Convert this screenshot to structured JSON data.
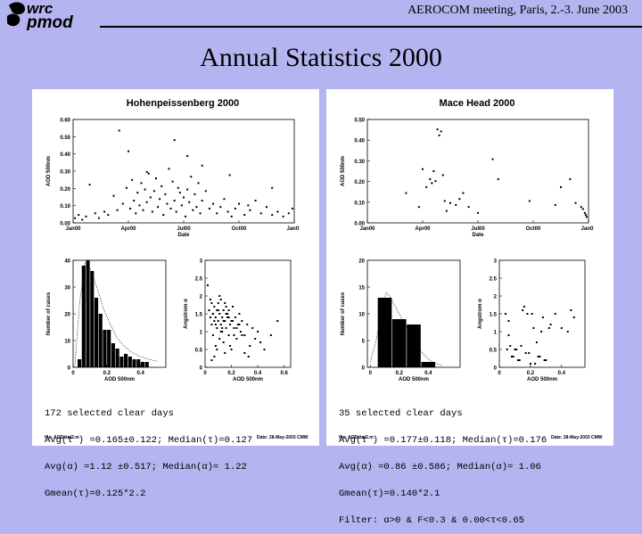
{
  "header": {
    "logo_top": "wrc",
    "logo_bottom": "pmod",
    "meeting": "AEROCOM meeting, Paris, 2.-3. June 2003",
    "title": "Annual Statistics 2000"
  },
  "left": {
    "station": "Hohenpeissenberg 2000",
    "stats": {
      "line1": "172 selected clear days",
      "line2": "Avg(τ ) =0.165±0.122; Median(τ)=0.127",
      "line3": "Avg(α) =1.12 ±0.517; Median(α)= 1.22",
      "line4": "Gmean(τ)=0.125*2.2"
    },
    "file": "file: AODstat2.m",
    "date": "Date: 28-May-2003 CMW"
  },
  "right": {
    "station": "Mace Head 2000",
    "stats": {
      "line1": "35 selected clear days",
      "line2": "Avg(τ ) =0.177±0.118; Median(τ)=0.176",
      "line3": "Avg(α) =0.86 ±0.586; Median(α)= 1.06",
      "line4": "Gmean(τ)=0.140*2.1",
      "line5": "Filter: α>0 & F<0.3 & 0.00<τ<0.65"
    },
    "file": "file: AODstat2.m",
    "date": "Date: 28-May-2003 CMW"
  },
  "chart_data": [
    {
      "id": "hp-ts",
      "type": "scatter",
      "xlabel": "Date",
      "ylabel": "AOD 500nm",
      "xticks": [
        "Jan00",
        "Apr00",
        "Jul00",
        "Oct00",
        "Jan01"
      ],
      "yticks": [
        "0.00",
        "0.10",
        "0.20",
        "0.30",
        "0.40",
        "0.50",
        "0.60"
      ],
      "xlim": [
        0,
        12
      ],
      "ylim": [
        0,
        0.65
      ],
      "x": [
        0.1,
        0.3,
        0.5,
        0.7,
        0.9,
        1.2,
        1.4,
        1.7,
        1.9,
        2.2,
        2.4,
        2.7,
        2.9,
        3.1,
        3.2,
        3.3,
        3.4,
        3.5,
        3.6,
        3.7,
        3.8,
        3.9,
        4.0,
        4.1,
        4.2,
        4.3,
        4.4,
        4.5,
        4.6,
        4.7,
        4.8,
        4.9,
        5.0,
        5.1,
        5.2,
        5.3,
        5.4,
        5.5,
        5.6,
        5.7,
        5.8,
        5.9,
        6.0,
        6.1,
        6.2,
        6.3,
        6.4,
        6.5,
        6.6,
        6.7,
        6.8,
        6.9,
        7.0,
        7.2,
        7.4,
        7.6,
        7.8,
        8.0,
        8.2,
        8.4,
        8.6,
        8.8,
        9.0,
        9.3,
        9.6,
        9.9,
        10.2,
        10.5,
        10.8,
        11.1,
        11.4,
        11.7,
        11.9,
        2.5,
        3.0,
        4.0,
        5.5,
        6.2,
        7.0,
        8.5,
        9.5,
        10.8
      ],
      "y": [
        0.03,
        0.05,
        0.02,
        0.04,
        0.24,
        0.06,
        0.03,
        0.07,
        0.05,
        0.17,
        0.08,
        0.12,
        0.22,
        0.09,
        0.27,
        0.14,
        0.06,
        0.19,
        0.11,
        0.25,
        0.08,
        0.21,
        0.13,
        0.31,
        0.16,
        0.07,
        0.2,
        0.28,
        0.1,
        0.15,
        0.23,
        0.05,
        0.18,
        0.12,
        0.34,
        0.09,
        0.26,
        0.14,
        0.07,
        0.22,
        0.19,
        0.11,
        0.16,
        0.04,
        0.21,
        0.13,
        0.29,
        0.08,
        0.18,
        0.1,
        0.25,
        0.06,
        0.14,
        0.2,
        0.09,
        0.12,
        0.06,
        0.1,
        0.15,
        0.07,
        0.04,
        0.09,
        0.12,
        0.05,
        0.08,
        0.14,
        0.06,
        0.1,
        0.05,
        0.07,
        0.04,
        0.06,
        0.09,
        0.58,
        0.45,
        0.32,
        0.52,
        0.42,
        0.36,
        0.3,
        0.11,
        0.22
      ]
    },
    {
      "id": "mh-ts",
      "type": "scatter",
      "xlabel": "Date",
      "ylabel": "AOD 500nm",
      "xticks": [
        "Jan00",
        "Apr00",
        "Jul00",
        "Oct00",
        "Jan01"
      ],
      "yticks": [
        "0.00",
        "0.10",
        "0.20",
        "0.30",
        "0.40",
        "0.50"
      ],
      "xlim": [
        0,
        12
      ],
      "ylim": [
        0,
        0.52
      ],
      "x": [
        2.1,
        2.8,
        3.0,
        3.2,
        3.4,
        3.5,
        3.6,
        3.7,
        3.8,
        3.9,
        4.0,
        4.1,
        4.2,
        4.3,
        4.5,
        4.8,
        5.0,
        5.2,
        5.5,
        6.0,
        6.8,
        7.1,
        8.8,
        10.2,
        10.5,
        11.0,
        11.3,
        11.6,
        11.7,
        11.8,
        11.85,
        11.9
      ],
      "y": [
        0.15,
        0.08,
        0.27,
        0.18,
        0.22,
        0.2,
        0.26,
        0.21,
        0.47,
        0.44,
        0.46,
        0.24,
        0.11,
        0.06,
        0.1,
        0.09,
        0.12,
        0.15,
        0.08,
        0.05,
        0.32,
        0.22,
        0.11,
        0.09,
        0.18,
        0.22,
        0.1,
        0.08,
        0.07,
        0.05,
        0.04,
        0.03
      ]
    },
    {
      "id": "hp-hist",
      "type": "bar",
      "xlabel": "AOD 500nm",
      "ylabel": "Number of cases",
      "xticks": [
        "0",
        "0.2",
        "0.4"
      ],
      "yticks": [
        "0",
        "10",
        "20",
        "30",
        "40"
      ],
      "xlim": [
        0,
        0.55
      ],
      "ylim": [
        0,
        40
      ],
      "bin_starts": [
        0.025,
        0.05,
        0.075,
        0.1,
        0.125,
        0.15,
        0.175,
        0.2,
        0.225,
        0.25,
        0.275,
        0.3,
        0.325,
        0.35,
        0.375,
        0.4,
        0.425
      ],
      "values": [
        3,
        38,
        40,
        36,
        26,
        20,
        14,
        14,
        9,
        7,
        4,
        5,
        4,
        3,
        3,
        2,
        2
      ],
      "fit": [
        [
          0.01,
          0.5
        ],
        [
          0.04,
          25
        ],
        [
          0.07,
          39
        ],
        [
          0.1,
          37
        ],
        [
          0.14,
          30
        ],
        [
          0.18,
          22
        ],
        [
          0.22,
          16
        ],
        [
          0.26,
          11
        ],
        [
          0.3,
          8
        ],
        [
          0.35,
          5.5
        ],
        [
          0.4,
          4
        ],
        [
          0.45,
          3
        ],
        [
          0.5,
          2.2
        ]
      ]
    },
    {
      "id": "mh-hist",
      "type": "bar",
      "xlabel": "AOD 500nm",
      "ylabel": "Number of cases",
      "xticks": [
        "0",
        "0.2",
        "0.4"
      ],
      "yticks": [
        "0",
        "5",
        "10",
        "15",
        "20"
      ],
      "xlim": [
        -0.02,
        0.62
      ],
      "ylim": [
        0,
        20
      ],
      "bin_width": 0.1,
      "bin_starts": [
        0.05,
        0.15,
        0.25,
        0.35
      ],
      "values": [
        13,
        9,
        8,
        1
      ],
      "fit": [
        [
          0.0,
          1
        ],
        [
          0.04,
          5
        ],
        [
          0.08,
          11
        ],
        [
          0.11,
          14
        ],
        [
          0.14,
          13
        ],
        [
          0.18,
          11
        ],
        [
          0.22,
          9
        ],
        [
          0.26,
          7
        ],
        [
          0.3,
          5
        ],
        [
          0.35,
          3
        ],
        [
          0.4,
          1.5
        ],
        [
          0.45,
          0.7
        ],
        [
          0.5,
          0.3
        ]
      ]
    },
    {
      "id": "hp-sc",
      "type": "scatter",
      "xlabel": "AOD 500nm",
      "ylabel": "Angstrom α",
      "xticks": [
        "0",
        "0.2",
        "0.4",
        "0.6"
      ],
      "yticks": [
        "0",
        "0.5",
        "1",
        "1.5",
        "2",
        "2.5",
        "3"
      ],
      "xlim": [
        0,
        0.65
      ],
      "ylim": [
        0,
        3
      ],
      "x": [
        0.02,
        0.03,
        0.04,
        0.05,
        0.05,
        0.06,
        0.06,
        0.07,
        0.07,
        0.08,
        0.08,
        0.09,
        0.09,
        0.1,
        0.1,
        0.11,
        0.11,
        0.12,
        0.12,
        0.13,
        0.13,
        0.14,
        0.14,
        0.15,
        0.15,
        0.16,
        0.16,
        0.17,
        0.18,
        0.18,
        0.19,
        0.2,
        0.2,
        0.21,
        0.22,
        0.23,
        0.24,
        0.25,
        0.26,
        0.27,
        0.28,
        0.3,
        0.32,
        0.34,
        0.36,
        0.38,
        0.4,
        0.42,
        0.45,
        0.5,
        0.55,
        0.04,
        0.06,
        0.08,
        0.1,
        0.12,
        0.14,
        0.16,
        0.18,
        0.22,
        0.26,
        0.3,
        0.05,
        0.07,
        0.09,
        0.11,
        0.13,
        0.15,
        0.17,
        0.19,
        0.21,
        0.24,
        0.28,
        0.33
      ],
      "y": [
        2.3,
        1.6,
        1.4,
        1.8,
        1.2,
        1.5,
        0.9,
        1.7,
        1.3,
        1.4,
        0.6,
        1.6,
        1.1,
        1.8,
        1.3,
        1.5,
        0.8,
        1.9,
        1.2,
        1.4,
        1.0,
        1.6,
        0.7,
        1.3,
        1.8,
        1.1,
        1.5,
        1.4,
        0.9,
        1.6,
        1.2,
        1.3,
        0.5,
        1.7,
        1.1,
        1.4,
        0.8,
        1.2,
        1.5,
        1.0,
        1.3,
        0.9,
        1.2,
        0.6,
        1.1,
        0.8,
        1.0,
        0.7,
        0.5,
        0.9,
        1.3,
        1.9,
        1.5,
        1.2,
        1.6,
        1.0,
        1.3,
        1.7,
        1.4,
        0.9,
        1.2,
        0.4,
        0.2,
        0.3,
        0.5,
        2.0,
        1.1,
        0.4,
        1.5,
        0.6,
        1.3,
        1.1,
        0.9,
        0.3
      ]
    },
    {
      "id": "mh-sc",
      "type": "scatter",
      "xlabel": "AOD 500nm",
      "ylabel": "Angstrom α",
      "xticks": [
        "0",
        "0.2",
        "0.4"
      ],
      "yticks": [
        "0",
        "0.5",
        "1",
        "1.5",
        "2",
        "2.5",
        "3"
      ],
      "xlim": [
        0,
        0.55
      ],
      "ylim": [
        0,
        3
      ],
      "x": [
        0.04,
        0.05,
        0.06,
        0.07,
        0.08,
        0.1,
        0.12,
        0.14,
        0.15,
        0.17,
        0.18,
        0.2,
        0.22,
        0.24,
        0.26,
        0.28,
        0.3,
        0.33,
        0.36,
        0.4,
        0.44,
        0.46,
        0.48,
        0.06,
        0.09,
        0.11,
        0.13,
        0.16,
        0.19,
        0.21,
        0.23,
        0.25,
        0.27,
        0.29,
        0.32
      ],
      "y": [
        1.5,
        0.5,
        1.3,
        0.6,
        0.3,
        0.5,
        0.2,
        0.6,
        1.6,
        0.4,
        1.5,
        0.1,
        1.1,
        0.7,
        0.3,
        1.4,
        0.2,
        1.2,
        1.5,
        1.1,
        1.0,
        1.6,
        1.4,
        0.9,
        0.3,
        0.5,
        0.2,
        1.7,
        0.4,
        1.5,
        0.1,
        0.3,
        1.0,
        0.2,
        1.1
      ]
    }
  ]
}
